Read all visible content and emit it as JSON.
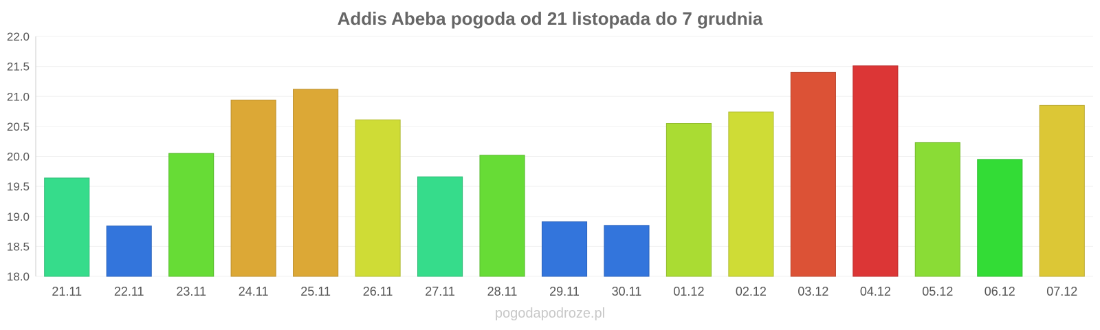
{
  "chart_data": {
    "type": "bar",
    "title": "Addis Abeba pogoda od 21 listopada do 7 grudnia",
    "xlabel": "",
    "ylabel": "",
    "categories": [
      "21.11",
      "22.11",
      "23.11",
      "24.11",
      "25.11",
      "26.11",
      "27.11",
      "28.11",
      "29.11",
      "30.11",
      "01.12",
      "02.12",
      "03.12",
      "04.12",
      "05.12",
      "06.12",
      "07.12"
    ],
    "values": [
      19.64,
      18.84,
      20.05,
      20.94,
      21.12,
      20.61,
      19.66,
      20.02,
      18.91,
      18.85,
      20.55,
      20.74,
      21.4,
      21.51,
      20.23,
      19.95,
      20.85
    ],
    "colors": [
      "#36dc8b",
      "#3375dc",
      "#67dc36",
      "#dca836",
      "#dca836",
      "#cfdc36",
      "#36dc8b",
      "#67dc36",
      "#3375dc",
      "#3375dc",
      "#aadc33",
      "#cfdc36",
      "#dc5236",
      "#dc3636",
      "#8adc36",
      "#33dc36",
      "#dcc736"
    ],
    "ylim": [
      18.0,
      22.0
    ],
    "yticks": [
      "18.0",
      "18.5",
      "19.0",
      "19.5",
      "20.0",
      "20.5",
      "21.0",
      "21.5",
      "22.0"
    ],
    "grid": true,
    "legend": "none"
  },
  "watermark": "pogodapodroze.pl"
}
